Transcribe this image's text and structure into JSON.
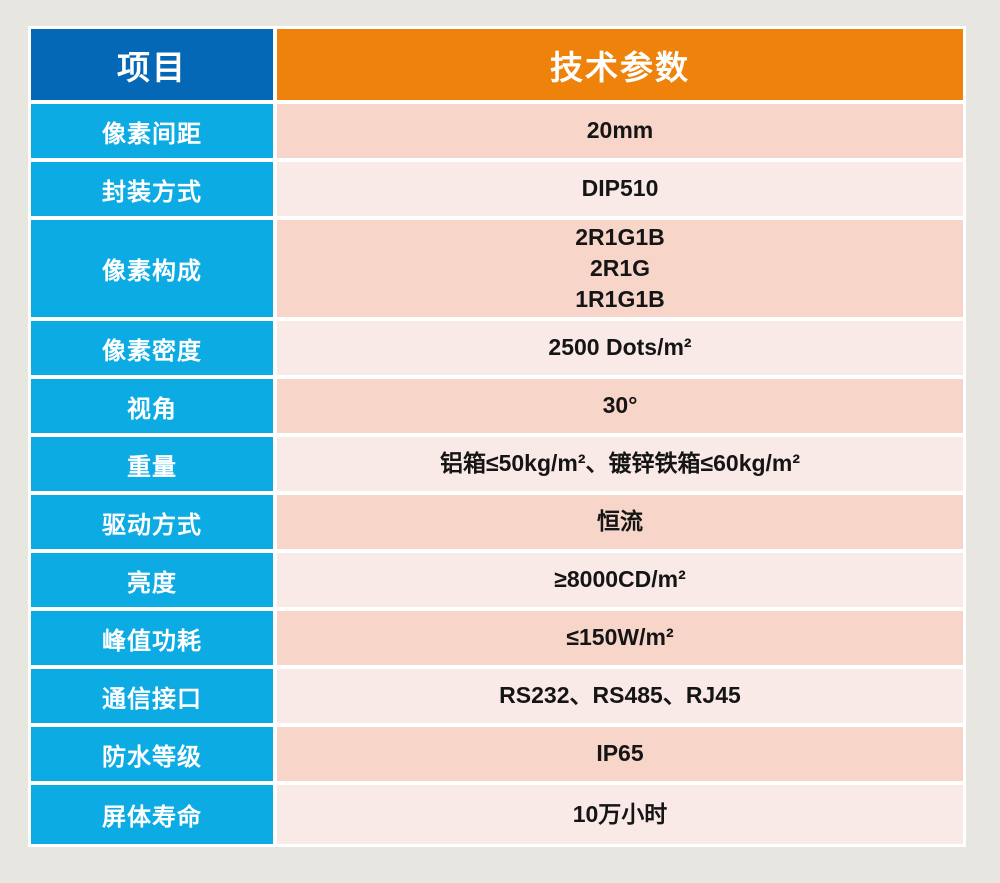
{
  "colors": {
    "page_background": "#e8e6e1",
    "table_frame": "#ffffff",
    "header_item_bg": "#0568b6",
    "header_param_bg": "#ee820a",
    "label_bg": "#0cabe4",
    "row_dark_bg": "#f7d5c9",
    "row_light_bg": "#faeae7",
    "value_text": "#151515",
    "header_text": "#ffffff"
  },
  "table": {
    "header": {
      "item_col": "项目",
      "param_col": "技术参数"
    },
    "rows": [
      {
        "label": "像素间距",
        "value": "20mm"
      },
      {
        "label": "封装方式",
        "value": "DIP510"
      },
      {
        "label": "像素构成",
        "value": "2R1G1B\n2R1G\n1R1G1B"
      },
      {
        "label": "像素密度",
        "value": "2500 Dots/m²"
      },
      {
        "label": "视角",
        "value": "30°"
      },
      {
        "label": "重量",
        "value": "铝箱≤50kg/m²、镀锌铁箱≤60kg/m²"
      },
      {
        "label": "驱动方式",
        "value": "恒流"
      },
      {
        "label": "亮度",
        "value": "≥8000CD/m²"
      },
      {
        "label": "峰值功耗",
        "value": "≤150W/m²"
      },
      {
        "label": "通信接口",
        "value": "RS232、RS485、RJ45"
      },
      {
        "label": "防水等级",
        "value": "IP65"
      },
      {
        "label": "屏体寿命",
        "value": "10万小时"
      }
    ]
  }
}
